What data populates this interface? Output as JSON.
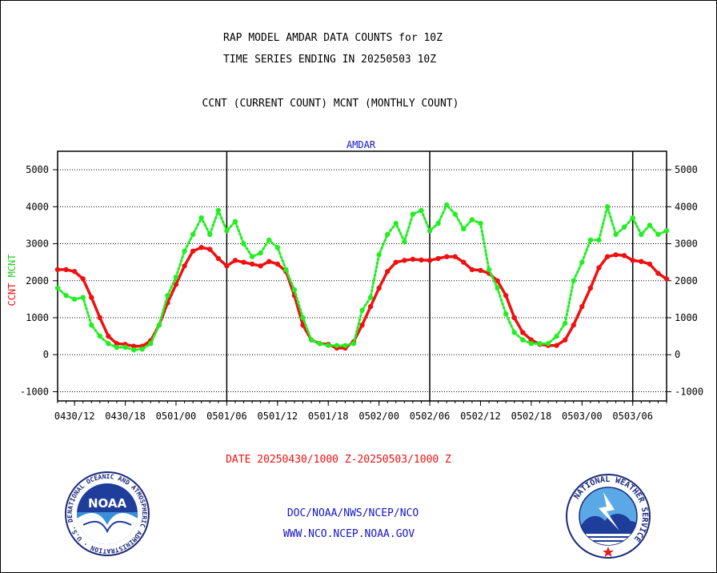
{
  "header": {
    "title_line1": "RAP MODEL AMDAR DATA COUNTS for 10Z",
    "title_line2": "TIME SERIES ENDING IN 20250503 10Z",
    "subtitle": "CCNT (CURRENT COUNT) MCNT (MONTHLY COUNT)",
    "panel_label": "AMDAR"
  },
  "footer": {
    "date_range": "DATE 20250430/1000 Z-20250503/1000 Z",
    "org_line": "DOC/NOAA/NWS/NCEP/NCO",
    "url_line": "WWW.NCO.NCEP.NOAA.GOV",
    "noaa_logo_text": "NOAA",
    "noaa_ring_text": "NATIONAL OCEANIC AND ATMOSPHERIC ADMINISTRATION · U.S. DEPARTMENT OF COMMERCE ·",
    "nws_ring_text": "NATIONAL WEATHER SERVICE"
  },
  "colors": {
    "ccnt": "#ee1111",
    "mcnt": "#22ee22",
    "panel_label": "#1515cc",
    "footer_link": "#1515cc",
    "date_text": "#ee1111"
  },
  "chart_data": {
    "type": "line",
    "ylabel_left_parts": [
      "CCNT",
      "MCNT"
    ],
    "ylim": [
      -1250,
      5500
    ],
    "yticks": [
      5000,
      4000,
      3000,
      2000,
      1000,
      0,
      -1000
    ],
    "ytick_labels": [
      "5000",
      "4000",
      "3000",
      "2000",
      "1000",
      "0",
      "-1000"
    ],
    "x_unit": "hour offset from 0430/10Z",
    "xlim": [
      0,
      72
    ],
    "xtick_hours": [
      2,
      8,
      14,
      20,
      26,
      32,
      38,
      44,
      50,
      56,
      62,
      68
    ],
    "xtick_labels": [
      "0430/12",
      "0430/18",
      "0501/00",
      "0501/06",
      "0501/12",
      "0501/18",
      "0502/00",
      "0502/06",
      "0502/12",
      "0502/18",
      "0503/00",
      "0503/06"
    ],
    "day_boundaries_hours": [
      20,
      44,
      68
    ],
    "grid": true,
    "series": [
      {
        "key": "ccnt",
        "name": "CCNT",
        "style": "solid",
        "values": [
          2300,
          2300,
          2250,
          2050,
          1550,
          1000,
          500,
          300,
          280,
          230,
          230,
          380,
          800,
          1400,
          1900,
          2400,
          2800,
          2900,
          2850,
          2600,
          2400,
          2550,
          2500,
          2450,
          2400,
          2520,
          2450,
          2250,
          1600,
          800,
          400,
          300,
          280,
          180,
          180,
          350,
          800,
          1300,
          1800,
          2250,
          2500,
          2550,
          2580,
          2560,
          2550,
          2600,
          2650,
          2650,
          2500,
          2300,
          2280,
          2200,
          2000,
          1600,
          1000,
          600,
          400,
          280,
          250,
          250,
          400,
          800,
          1300,
          1800,
          2350,
          2650,
          2700,
          2680,
          2550,
          2520,
          2450,
          2200,
          2050
        ]
      },
      {
        "key": "mcnt",
        "name": "MCNT",
        "style": "dotted",
        "values": [
          1800,
          1600,
          1500,
          1550,
          800,
          500,
          300,
          200,
          200,
          130,
          150,
          300,
          800,
          1600,
          2100,
          2800,
          3250,
          3700,
          3250,
          3900,
          3350,
          3600,
          3000,
          2650,
          2750,
          3100,
          2900,
          2300,
          1750,
          1000,
          400,
          300,
          250,
          250,
          250,
          300,
          1200,
          1550,
          2700,
          3250,
          3550,
          3050,
          3800,
          3900,
          3350,
          3550,
          4050,
          3800,
          3400,
          3650,
          3550,
          2300,
          1800,
          1100,
          600,
          400,
          300,
          300,
          300,
          500,
          850,
          2000,
          2500,
          3100,
          3100,
          4000,
          3250,
          3450,
          3700,
          3250,
          3500,
          3250,
          3350
        ]
      }
    ]
  }
}
